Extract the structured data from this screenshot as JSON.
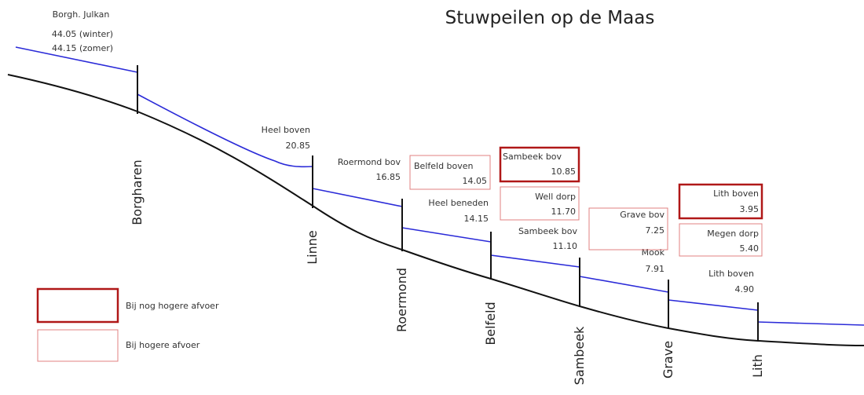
{
  "title": "Stuwpeilen op de Maas",
  "top_label": {
    "name": "Borgh. Julkan",
    "winter": "44.05 (winter)",
    "summer": "44.15 (zomer)"
  },
  "weirs": [
    {
      "name": "Borgharen"
    },
    {
      "name": "Linne",
      "upstream_name": "Heel boven",
      "upstream_level": "20.85"
    },
    {
      "name": "Roermond",
      "upstream_name": "Roermond bov",
      "upstream_level": "16.85"
    },
    {
      "name": "Belfeld",
      "upstream_name": "Heel beneden",
      "upstream_level": "14.15"
    },
    {
      "name": "Sambeek",
      "upstream_name": "Sambeek bov",
      "upstream_level": "11.10"
    },
    {
      "name": "Grave",
      "upstream_name": "Mook",
      "upstream_level": "7.91"
    },
    {
      "name": "Lith",
      "upstream_name": "Lith boven",
      "upstream_level": "4.90"
    }
  ],
  "high_flow": [
    {
      "name": "Belfeld boven",
      "level": "14.05"
    },
    {
      "name": "Well dorp",
      "level": "11.70"
    },
    {
      "name": "Grave bov",
      "level": "7.25"
    },
    {
      "name": "Megen dorp",
      "level": "5.40"
    }
  ],
  "very_high_flow": [
    {
      "name": "Sambeek bov",
      "level": "10.85"
    },
    {
      "name": "Lith boven",
      "level": "3.95"
    }
  ],
  "legend": {
    "very_high": "Bij nog hogere afvoer",
    "high": "Bij hogere afvoer"
  }
}
